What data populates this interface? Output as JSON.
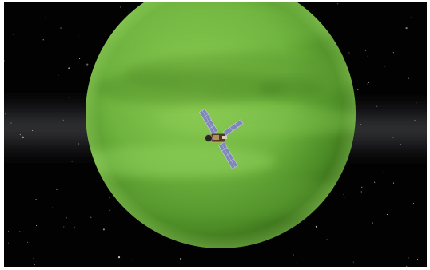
{
  "scene": {
    "view": "map-view",
    "body": {
      "name": "",
      "icon": "green-gas-giant-icon",
      "colors": {
        "base": "#6fb43f",
        "light": "#97d260",
        "shadow": "#3f7a1e",
        "band": "#5c9a32"
      }
    },
    "vessel": {
      "name": "",
      "icon": "satellite-probe-icon",
      "colors": {
        "panel": "#7f86b8",
        "panel_grid": "#c9cde8",
        "body": "#4a3a28",
        "foil": "#c8a25a"
      }
    },
    "background": {
      "icon": "starfield-icon",
      "colors": {
        "space": "#020203",
        "milky_way": "#3a3b3e",
        "star": "#d8d8d8"
      }
    }
  }
}
